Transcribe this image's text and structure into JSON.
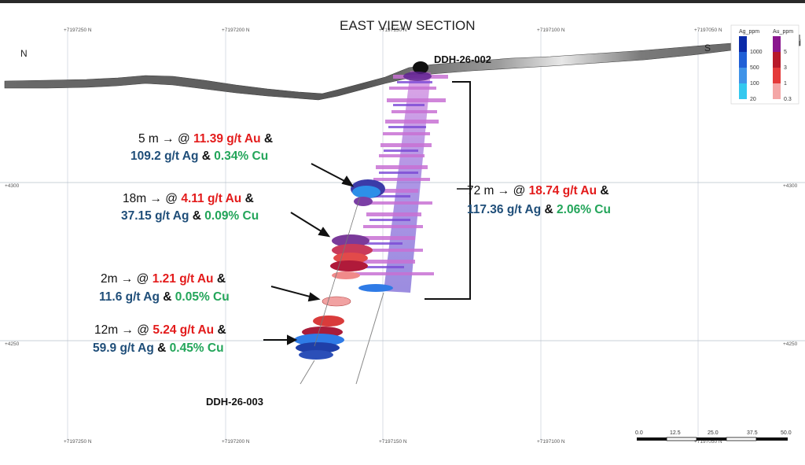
{
  "title": "EAST VIEW SECTION",
  "directions": {
    "north": "N",
    "south": "S"
  },
  "northings_top": [
    "+7197250 N",
    "+7197200 N",
    "+7197150 N",
    "+7197100 N",
    "+7197050 N"
  ],
  "northings_bottom": [
    "+7197250 N",
    "+7197200 N",
    "+7197150 N",
    "+7197100 N",
    "+7197050 N"
  ],
  "elevations": {
    "upper": "+4300",
    "lower": "+4250"
  },
  "drillholes": {
    "hole_a": "DDH-26-002",
    "hole_b": "DDH-26-003"
  },
  "intercepts": [
    {
      "len": "5 m",
      "au": "11.39 g/t Au",
      "ag": "109.2 g/t Ag",
      "cu": "0.34% Cu"
    },
    {
      "len": "18m",
      "au": "4.11 g/t Au",
      "ag": "37.15 g/t Ag",
      "cu": "0.09% Cu"
    },
    {
      "len": "2m",
      "au": "1.21 g/t Au",
      "ag": "11.6 g/t Ag",
      "cu": "0.05% Cu"
    },
    {
      "len": "12m",
      "au": "5.24 g/t Au",
      "ag": "59.9 g/t Ag",
      "cu": "0.45% Cu"
    },
    {
      "len": "72 m",
      "au": "18.74 g/t Au",
      "ag": "117.36 g/t Ag",
      "cu": "2.06% Cu"
    }
  ],
  "symbols": {
    "arrow": "→ @",
    "amp": "&"
  },
  "legend": {
    "ag_title": "Ag_ppm",
    "au_title": "Au_ppm",
    "ag_values": [
      "1000",
      "500",
      "100",
      "20"
    ],
    "au_values": [
      "5",
      "3",
      "1",
      "0.3"
    ],
    "ag_colors": [
      "#0a2aa8",
      "#1f5fd6",
      "#3f93e8",
      "#33c8ef"
    ],
    "au_colors": [
      "#8a168e",
      "#b8192a",
      "#e43a3a",
      "#f4a6a6"
    ]
  },
  "scale_bar": [
    "0.0",
    "12.5",
    "25.0",
    "37.5",
    "50.0"
  ]
}
